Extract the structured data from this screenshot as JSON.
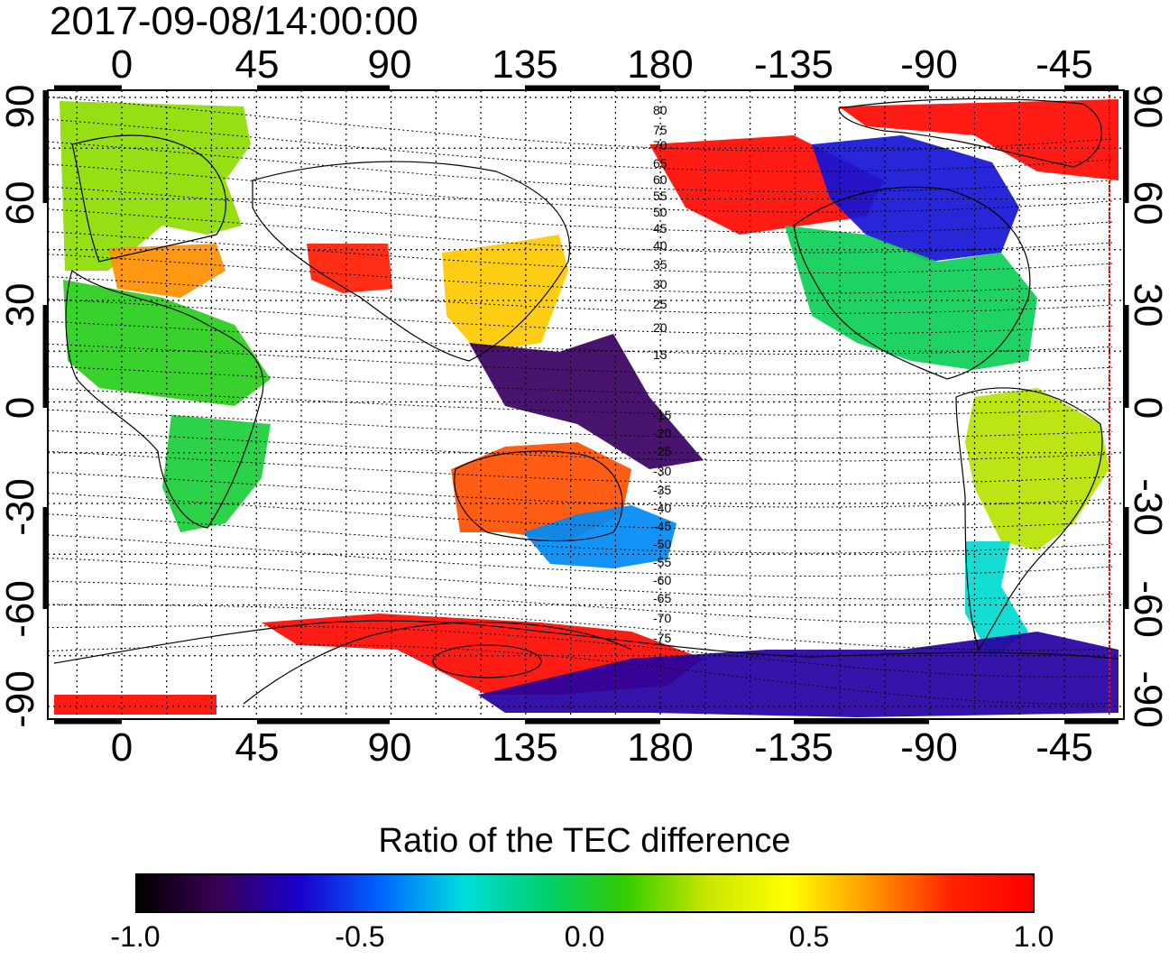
{
  "timestamp": "2017-09-08/14:00:00",
  "map": {
    "projection": "equirectangular (cylindrical)",
    "lon_center": 150,
    "lon_ticks_top": [
      "0",
      "45",
      "90",
      "135",
      "180",
      "-135",
      "-90",
      "-45"
    ],
    "lon_ticks_bottom": [
      "0",
      "45",
      "90",
      "135",
      "180",
      "-135",
      "-90",
      "-45"
    ],
    "lat_ticks_left": [
      "90",
      "60",
      "30",
      "0",
      "-30",
      "-60",
      "-90"
    ],
    "lat_ticks_right": [
      "90",
      "60",
      "30",
      "0",
      "-30",
      "-60",
      "-90"
    ],
    "grid": "dotted, 15-degree spacing",
    "overlay": "coastlines",
    "contour_labels": [
      "80",
      "75",
      "70",
      "65",
      "60",
      "55",
      "50",
      "45",
      "40",
      "35",
      "30",
      "25",
      "20",
      "15",
      "-15",
      "-20",
      "-25",
      "-30",
      "-35",
      "-40",
      "-45",
      "-50",
      "-55",
      "-60",
      "-65",
      "-70",
      "-75"
    ],
    "data_regions": [
      {
        "name": "europe-region",
        "value": 0.2
      },
      {
        "name": "southern-europe-region",
        "value": 0.65
      },
      {
        "name": "africa-north-region",
        "value": 0.05
      },
      {
        "name": "africa-south-region",
        "value": 0.0
      },
      {
        "name": "central-asia-region",
        "value": 0.85
      },
      {
        "name": "east-asia-region",
        "value": 0.55
      },
      {
        "name": "western-pacific-region",
        "value": -0.8
      },
      {
        "name": "australia-region",
        "value": 0.75
      },
      {
        "name": "new-zealand-region",
        "value": -0.4
      },
      {
        "name": "alaska-region",
        "value": 0.95
      },
      {
        "name": "canada-region",
        "value": -0.6
      },
      {
        "name": "north-america-region",
        "value": -0.05
      },
      {
        "name": "south-america-region",
        "value": 0.25
      },
      {
        "name": "patagonia-region",
        "value": -0.25
      },
      {
        "name": "antarctic-ring-region",
        "value": 0.95
      },
      {
        "name": "antarctica-east-region",
        "value": -0.7
      }
    ]
  },
  "colorbar": {
    "title": "Ratio of the TEC difference",
    "min": -1.0,
    "max": 1.0,
    "tick_labels": [
      "-1.0",
      "-0.5",
      "0.0",
      "0.5",
      "1.0"
    ],
    "colormap": [
      "#000000",
      "#3b0055",
      "#1a00cc",
      "#0066ff",
      "#00dddd",
      "#00d070",
      "#33cc00",
      "#c8e600",
      "#ffff00",
      "#ff9900",
      "#ff2200",
      "#ff0000"
    ]
  }
}
